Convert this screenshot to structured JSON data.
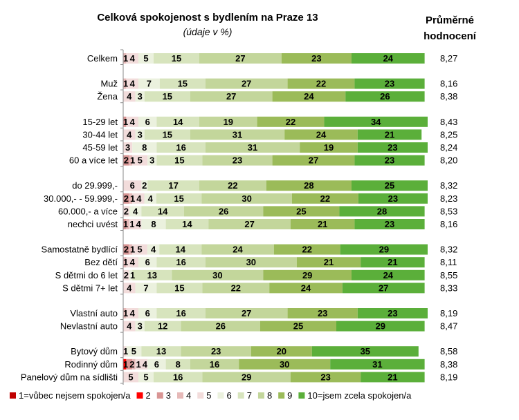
{
  "chart_data": {
    "type": "bar",
    "orientation": "horizontal",
    "stacked": true,
    "title": "Celková spokojenost s bydlením na Praze 13",
    "subtitle": "(údaje v %)",
    "avg_header": [
      "Průměrné",
      "hodnocení"
    ],
    "xlim": [
      0,
      100
    ],
    "legend_position": "bottom",
    "series": [
      {
        "name": "1=vůbec nejsem spokojen/a",
        "color": "#C00000"
      },
      {
        "name": "2",
        "color": "#FF0000"
      },
      {
        "name": "3",
        "color": "#D99594"
      },
      {
        "name": "4",
        "color": "#E6B9B8"
      },
      {
        "name": "5",
        "color": "#F2DCDB"
      },
      {
        "name": "6",
        "color": "#EBF1DE"
      },
      {
        "name": "7",
        "color": "#D7E4BD"
      },
      {
        "name": "8",
        "color": "#C3D69B"
      },
      {
        "name": "9",
        "color": "#9BBB59"
      },
      {
        "name": "10=jsem zcela spokojen/a",
        "color": "#5BAF3A"
      }
    ],
    "groups": [
      [
        {
          "label": "Celkem",
          "values": [
            0,
            0,
            0,
            1,
            4,
            5,
            15,
            27,
            23,
            24
          ],
          "avg": "8,27"
        }
      ],
      [
        {
          "label": "Muž",
          "values": [
            0,
            0,
            0,
            1,
            4,
            7,
            15,
            27,
            22,
            23
          ],
          "avg": "8,16"
        },
        {
          "label": "Žena",
          "values": [
            0,
            0,
            0,
            0,
            4,
            3,
            15,
            27,
            24,
            26
          ],
          "avg": "8,38"
        }
      ],
      [
        {
          "label": "15-29 let",
          "values": [
            0,
            0,
            1,
            0,
            4,
            6,
            14,
            19,
            22,
            34
          ],
          "avg": "8,43"
        },
        {
          "label": "30-44 let",
          "values": [
            0,
            0,
            0,
            0,
            4,
            3,
            15,
            31,
            24,
            21
          ],
          "avg": "8,25"
        },
        {
          "label": "45-59 let",
          "values": [
            0,
            0,
            0,
            0,
            3,
            8,
            16,
            31,
            19,
            23
          ],
          "avg": "8,24"
        },
        {
          "label": "60 a více let",
          "values": [
            0,
            0,
            2,
            1,
            5,
            3,
            15,
            23,
            27,
            23
          ],
          "avg": "8,20"
        }
      ],
      [
        {
          "label": "do 29.999,-",
          "values": [
            0,
            0,
            0,
            0,
            6,
            2,
            17,
            22,
            28,
            25
          ],
          "avg": "8,32"
        },
        {
          "label": "30.000,- - 59.999,-",
          "values": [
            0,
            0,
            2,
            1,
            4,
            4,
            15,
            30,
            22,
            23
          ],
          "avg": "8,23"
        },
        {
          "label": "60.000,- a více",
          "values": [
            0,
            0,
            0,
            0,
            2,
            4,
            14,
            26,
            25,
            28
          ],
          "avg": "8,53"
        },
        {
          "label": "nechci uvést",
          "values": [
            0,
            0,
            1,
            1,
            4,
            8,
            14,
            27,
            21,
            23
          ],
          "avg": "8,16"
        }
      ],
      [
        {
          "label": "Samostatně bydlící",
          "values": [
            0,
            0,
            2,
            1,
            5,
            4,
            14,
            24,
            22,
            29
          ],
          "avg": "8,32"
        },
        {
          "label": "Bez dětí",
          "values": [
            0,
            0,
            0,
            1,
            4,
            6,
            16,
            30,
            21,
            21
          ],
          "avg": "8,11"
        },
        {
          "label": "S dětmi do 6 let",
          "values": [
            0,
            0,
            0,
            0,
            2,
            1,
            13,
            30,
            29,
            24
          ],
          "avg": "8,55"
        },
        {
          "label": "S dětmi 7+ let",
          "values": [
            0,
            0,
            0,
            0,
            4,
            7,
            15,
            22,
            24,
            27
          ],
          "avg": "8,33"
        }
      ],
      [
        {
          "label": "Vlastní auto",
          "values": [
            0,
            0,
            0,
            1,
            4,
            6,
            16,
            27,
            23,
            23
          ],
          "avg": "8,19"
        },
        {
          "label": "Nevlastní auto",
          "values": [
            0,
            0,
            0,
            0,
            4,
            3,
            12,
            26,
            25,
            29
          ],
          "avg": "8,47"
        }
      ],
      [
        {
          "label": "Bytový dům",
          "values": [
            0,
            0,
            0,
            0,
            1,
            5,
            13,
            23,
            20,
            35
          ],
          "avg": "8,58"
        },
        {
          "label": "Rodinný dům",
          "values": [
            0,
            1,
            2,
            1,
            4,
            6,
            8,
            16,
            30,
            31
          ],
          "avg": "8,38"
        },
        {
          "label": "Panelový dům na sídlišti",
          "values": [
            0,
            0,
            0,
            0,
            5,
            5,
            16,
            29,
            23,
            21
          ],
          "avg": "8,19"
        }
      ]
    ]
  }
}
